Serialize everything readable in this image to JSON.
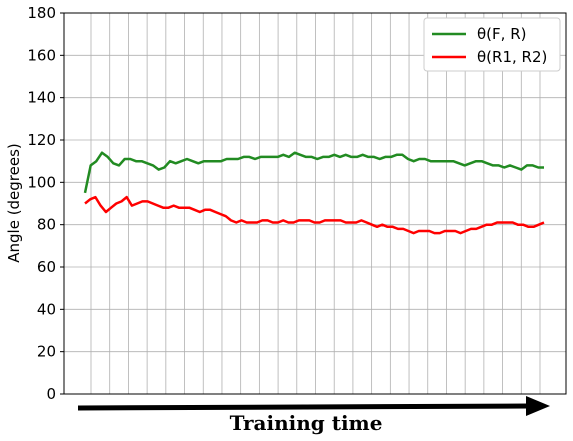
{
  "chart_data": {
    "type": "line",
    "title": "",
    "xlabel": "Training time",
    "ylabel": "Angle (degrees)",
    "ylim": [
      0,
      180
    ],
    "yticks": [
      0,
      20,
      40,
      60,
      80,
      100,
      120,
      140,
      160,
      180
    ],
    "grid": true,
    "x_tick_count": 25,
    "legend_position": "top-right",
    "series": [
      {
        "name": "θ(F, R)",
        "color": "#228b22",
        "values": [
          95,
          108,
          110,
          114,
          112,
          109,
          108,
          111,
          111,
          110,
          110,
          109,
          108,
          106,
          107,
          110,
          109,
          110,
          111,
          110,
          109,
          110,
          110,
          110,
          110,
          111,
          111,
          111,
          112,
          112,
          111,
          112,
          112,
          112,
          112,
          113,
          112,
          114,
          113,
          112,
          112,
          111,
          112,
          112,
          113,
          112,
          113,
          112,
          112,
          113,
          112,
          112,
          111,
          112,
          112,
          113,
          113,
          111,
          110,
          111,
          111,
          110,
          110,
          110,
          110,
          110,
          109,
          108,
          109,
          110,
          110,
          109,
          108,
          108,
          107,
          108,
          107,
          106,
          108,
          108,
          107,
          107
        ]
      },
      {
        "name": "θ(R1, R2)",
        "color": "#ff0000",
        "values": [
          90,
          92,
          93,
          89,
          86,
          88,
          90,
          91,
          93,
          89,
          90,
          91,
          91,
          90,
          89,
          88,
          88,
          89,
          88,
          88,
          88,
          87,
          86,
          87,
          87,
          86,
          85,
          84,
          82,
          81,
          82,
          81,
          81,
          81,
          82,
          82,
          81,
          81,
          82,
          81,
          81,
          82,
          82,
          82,
          81,
          81,
          82,
          82,
          82,
          82,
          81,
          81,
          81,
          82,
          81,
          80,
          79,
          80,
          79,
          79,
          78,
          78,
          77,
          76,
          77,
          77,
          77,
          76,
          76,
          77,
          77,
          77,
          76,
          77,
          78,
          78,
          79,
          80,
          80,
          81,
          81,
          81,
          81,
          80,
          80,
          79,
          79,
          80,
          81
        ]
      }
    ]
  }
}
